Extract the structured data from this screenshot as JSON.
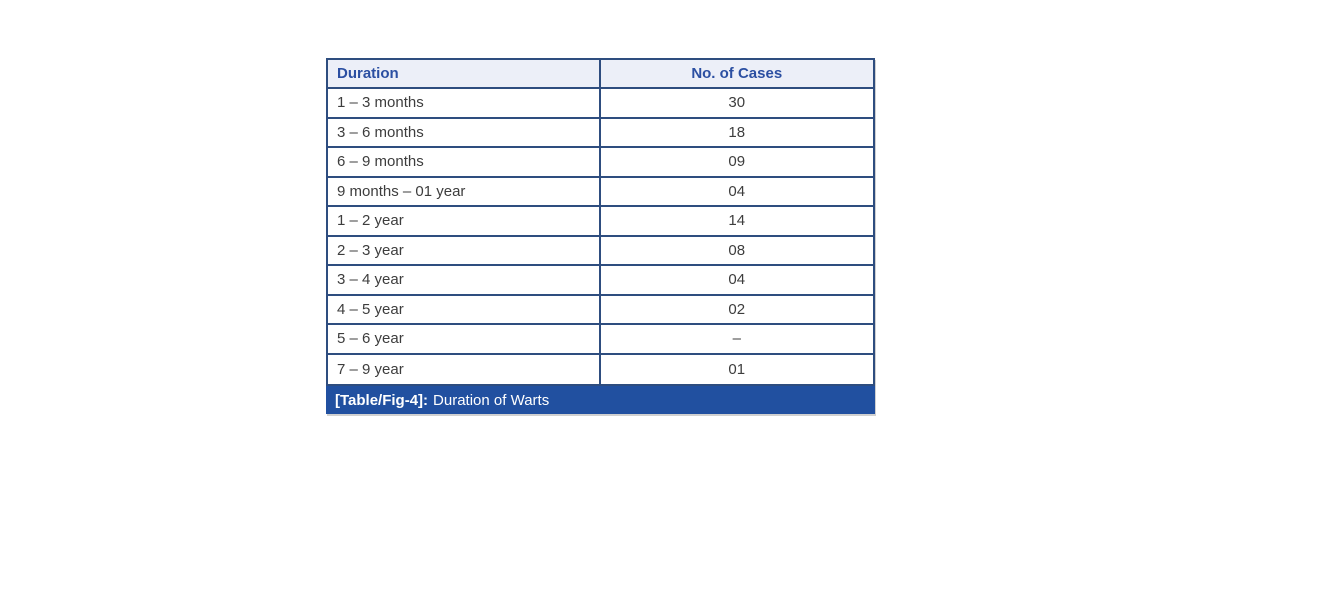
{
  "figure": {
    "caption": {
      "label": "[Table/Fig-4]:",
      "text": "Duration of Warts"
    }
  },
  "table": {
    "columns": [
      "Duration",
      "No. of Cases"
    ],
    "rows": [
      {
        "duration": "1 – 3 months",
        "cases": "30"
      },
      {
        "duration": "3 – 6 months",
        "cases": "18"
      },
      {
        "duration": "6 – 9 months",
        "cases": "09"
      },
      {
        "duration": "9 months – 01 year",
        "cases": "04"
      },
      {
        "duration": "1 – 2 year",
        "cases": "14"
      },
      {
        "duration": "2 – 3 year",
        "cases": "08"
      },
      {
        "duration": "3 – 4 year",
        "cases": "04"
      },
      {
        "duration": "4 – 5 year",
        "cases": "02"
      },
      {
        "duration": "5 – 6 year",
        "cases": "–"
      },
      {
        "duration": "7 – 9 year",
        "cases": "01"
      }
    ]
  },
  "chart_data": {
    "type": "table",
    "title": "[Table/Fig-4]: Duration of Warts",
    "columns": [
      "Duration",
      "No. of Cases"
    ],
    "rows": [
      [
        "1 – 3 months",
        "30"
      ],
      [
        "3 – 6 months",
        "18"
      ],
      [
        "6 – 9 months",
        "09"
      ],
      [
        "9 months – 01 year",
        "04"
      ],
      [
        "1 – 2 year",
        "14"
      ],
      [
        "2 – 3 year",
        "08"
      ],
      [
        "3 – 4 year",
        "04"
      ],
      [
        "4 – 5 year",
        "02"
      ],
      [
        "5 – 6 year",
        "–"
      ],
      [
        "7 – 9 year",
        "01"
      ]
    ]
  },
  "colors": {
    "header_bg": "#ecEFf8",
    "header_text": "#2b4fa2",
    "grid_line": "#2e4d7f",
    "caption_bg": "#2150a0",
    "caption_text": "#ffffff",
    "body_text": "#3d3d3d",
    "page_bg": "#ffffff"
  }
}
